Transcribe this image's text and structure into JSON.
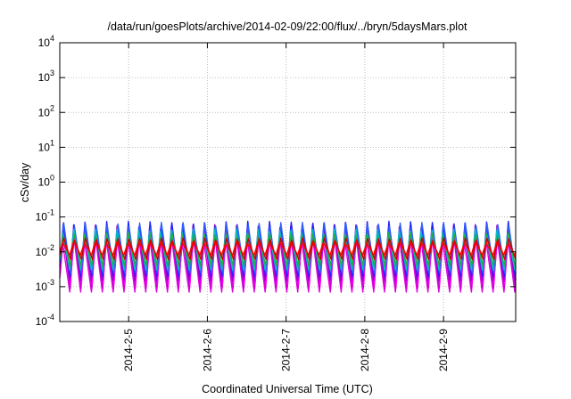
{
  "chart_data": {
    "type": "line",
    "title": "/data/run/goesPlots/archive/2014-02-09/22:00/flux/../bryn/5daysMars.plot",
    "xlabel": "Coordinated Universal Time (UTC)",
    "ylabel": "cSv/day",
    "y_scale": "log",
    "ylim": [
      0.0001,
      10000
    ],
    "y_ticks": [
      {
        "base": "10",
        "exp": "-4"
      },
      {
        "base": "10",
        "exp": "-3"
      },
      {
        "base": "10",
        "exp": "-2"
      },
      {
        "base": "10",
        "exp": "-1"
      },
      {
        "base": "10",
        "exp": "0"
      },
      {
        "base": "10",
        "exp": "1"
      },
      {
        "base": "10",
        "exp": "2"
      },
      {
        "base": "10",
        "exp": "3"
      },
      {
        "base": "10",
        "exp": "4"
      }
    ],
    "xlim": [
      "2014-02-04T03:00",
      "2014-02-09T22:00"
    ],
    "x_ticks": [
      "2014-2-5",
      "2014-2-6",
      "2014-2-7",
      "2014-2-8",
      "2014-2-9"
    ],
    "x_tick_dates": [
      "2014-02-05",
      "2014-02-06",
      "2014-02-07",
      "2014-02-08",
      "2014-02-09"
    ],
    "grid": true,
    "legend": "none",
    "oscillation_cycles_per_day": 7.3,
    "series": [
      {
        "color": "#e000e0",
        "min": 0.0007,
        "max": 0.03
      },
      {
        "color": "#d000d0",
        "min": 0.0009,
        "max": 0.04
      },
      {
        "color": "#ff00ff",
        "min": 0.0012,
        "max": 0.05
      },
      {
        "color": "#9400d3",
        "min": 0.0015,
        "max": 0.06
      },
      {
        "color": "#2020ff",
        "min": 0.002,
        "max": 0.075
      },
      {
        "color": "#3060ff",
        "min": 0.0025,
        "max": 0.07
      },
      {
        "color": "#00c0c0",
        "min": 0.003,
        "max": 0.045
      },
      {
        "color": "#20b040",
        "min": 0.004,
        "max": 0.035
      },
      {
        "color": "#cc0000",
        "min": 0.006,
        "max": 0.025
      },
      {
        "color": "#ff0000",
        "min": 0.008,
        "max": 0.02
      }
    ]
  }
}
